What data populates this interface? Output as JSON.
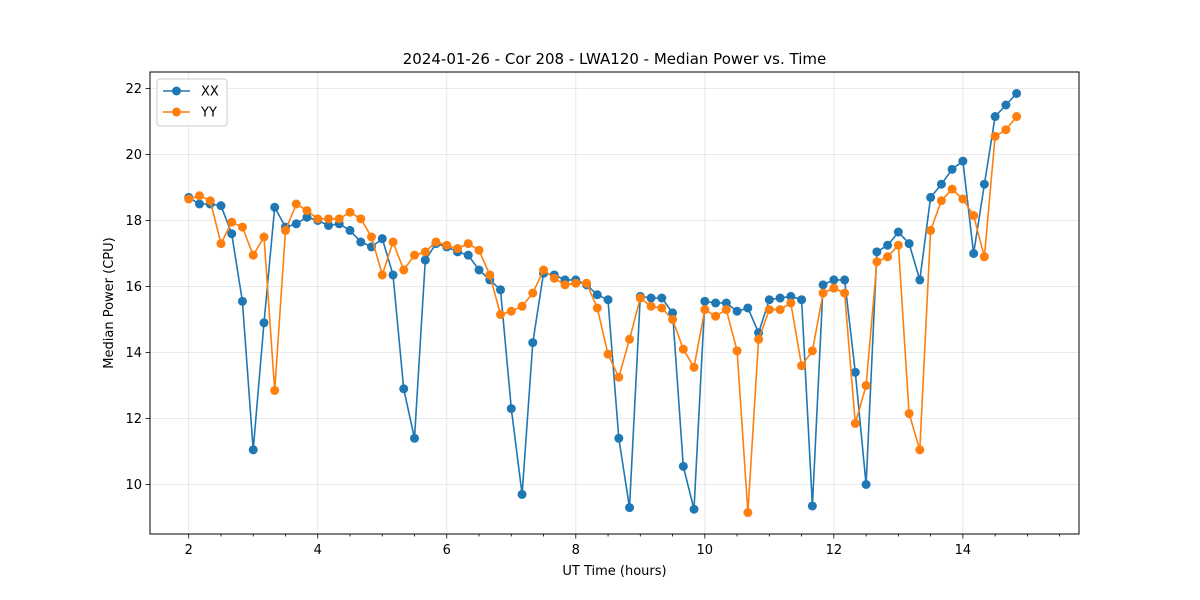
{
  "chart_data": {
    "type": "line",
    "title": "2024-01-26 - Cor 208 - LWA120 - Median Power vs. Time",
    "xlabel": "UT Time (hours)",
    "ylabel": "Median Power (CPU)",
    "xlim": [
      1.4,
      15.8
    ],
    "ylim": [
      8.5,
      22.5
    ],
    "xticks": [
      2,
      4,
      6,
      8,
      10,
      12,
      14
    ],
    "xticks_minor": [
      2,
      2.5,
      3,
      3.5,
      4,
      4.5,
      5,
      5.5,
      6,
      6.5,
      7,
      7.5,
      8,
      8.5,
      9,
      9.5,
      10,
      10.5,
      11,
      11.5,
      12,
      12.5,
      13,
      13.5,
      14,
      14.5,
      15,
      15.5
    ],
    "yticks": [
      10,
      12,
      14,
      16,
      18,
      20,
      22
    ],
    "grid": true,
    "legend_position": "top-left",
    "x": [
      2.0,
      2.167,
      2.333,
      2.5,
      2.667,
      2.833,
      3.0,
      3.167,
      3.333,
      3.5,
      3.667,
      3.833,
      4.0,
      4.167,
      4.333,
      4.5,
      4.667,
      4.833,
      5.0,
      5.167,
      5.333,
      5.5,
      5.667,
      5.833,
      6.0,
      6.167,
      6.333,
      6.5,
      6.667,
      6.833,
      7.0,
      7.167,
      7.333,
      7.5,
      7.667,
      7.833,
      8.0,
      8.167,
      8.333,
      8.5,
      8.667,
      8.833,
      9.0,
      9.167,
      9.333,
      9.5,
      9.667,
      9.833,
      10.0,
      10.167,
      10.333,
      10.5,
      10.667,
      10.833,
      11.0,
      11.167,
      11.333,
      11.5,
      11.667,
      11.833,
      12.0,
      12.167,
      12.333,
      12.5,
      12.667,
      12.833,
      13.0,
      13.167,
      13.333,
      13.5,
      13.667,
      13.833,
      14.0,
      14.167,
      14.333,
      14.5,
      14.667,
      14.833
    ],
    "series": [
      {
        "name": "XX",
        "color": "#1f77b4",
        "values": [
          18.7,
          18.5,
          18.5,
          18.45,
          17.6,
          15.55,
          11.05,
          14.9,
          18.4,
          17.8,
          17.9,
          18.1,
          18.0,
          17.85,
          17.9,
          17.7,
          17.35,
          17.2,
          17.45,
          16.35,
          12.9,
          11.4,
          16.8,
          17.3,
          17.2,
          17.05,
          16.95,
          16.5,
          16.2,
          15.9,
          12.3,
          9.7,
          14.3,
          16.4,
          16.35,
          16.2,
          16.2,
          16.05,
          15.75,
          15.6,
          11.4,
          9.3,
          15.7,
          15.65,
          15.65,
          15.2,
          10.55,
          9.25,
          15.55,
          15.5,
          15.5,
          15.25,
          15.35,
          14.6,
          15.6,
          15.65,
          15.7,
          15.6,
          9.35,
          16.05,
          16.2,
          16.2,
          13.4,
          10.0,
          17.05,
          17.25,
          17.65,
          17.3,
          16.2,
          18.7,
          19.1,
          19.55,
          19.8,
          17.0,
          19.1,
          21.15,
          21.5,
          21.85
        ]
      },
      {
        "name": "YY",
        "color": "#ff7f0e",
        "values": [
          18.65,
          18.75,
          18.6,
          17.3,
          17.95,
          17.8,
          16.95,
          17.5,
          12.85,
          17.7,
          18.5,
          18.3,
          18.05,
          18.05,
          18.05,
          18.25,
          18.05,
          17.5,
          16.35,
          17.35,
          16.5,
          16.95,
          17.05,
          17.35,
          17.25,
          17.15,
          17.3,
          17.1,
          16.35,
          15.15,
          15.25,
          15.4,
          15.8,
          16.5,
          16.25,
          16.05,
          16.1,
          16.1,
          15.35,
          13.95,
          13.25,
          14.4,
          15.65,
          15.4,
          15.35,
          15.0,
          14.1,
          13.55,
          15.3,
          15.1,
          15.3,
          14.05,
          9.15,
          14.4,
          15.3,
          15.3,
          15.5,
          13.6,
          14.05,
          15.8,
          15.95,
          15.8,
          11.85,
          13.0,
          16.75,
          16.9,
          17.25,
          12.15,
          11.05,
          17.7,
          18.6,
          18.95,
          18.65,
          18.15,
          16.9,
          20.55,
          20.75,
          21.15
        ]
      }
    ]
  }
}
